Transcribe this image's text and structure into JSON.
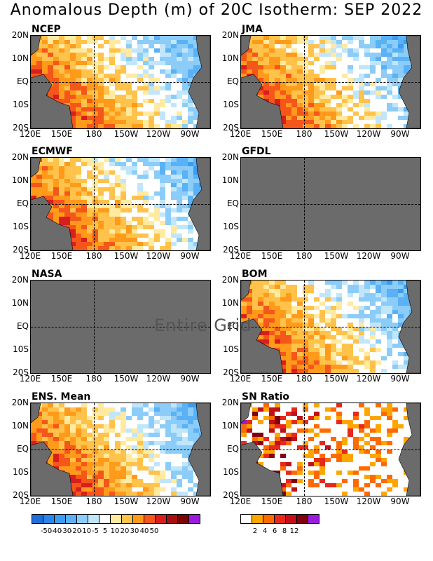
{
  "title": "Anomalous Depth (m) of 20C Isotherm: SEP 2022",
  "panels": [
    {
      "label": "NCEP",
      "available": true
    },
    {
      "label": "JMA",
      "available": true
    },
    {
      "label": "ECMWF",
      "available": true
    },
    {
      "label": "GFDL",
      "available": false
    },
    {
      "label": "NASA",
      "available": false
    },
    {
      "label": "BOM",
      "available": true
    },
    {
      "label": "ENS. Mean",
      "available": true
    },
    {
      "label": "SN Ratio",
      "available": true
    }
  ],
  "y_ticks": [
    "20N",
    "10N",
    "EQ",
    "10S",
    "20S"
  ],
  "x_ticks": [
    "120E",
    "150E",
    "180",
    "150W",
    "120W",
    "90W"
  ],
  "overlay_text": "Entire Grid",
  "anomaly_colorbar": {
    "colors": [
      "#1e6fd9",
      "#2a86e8",
      "#3c9cf0",
      "#5ab1f5",
      "#8bcdf8",
      "#c1e6fb",
      "#ffffff",
      "#ffeaa0",
      "#ffc24a",
      "#ff9a1a",
      "#f5561a",
      "#d91e1e",
      "#a80f0f",
      "#7a0505",
      "#9b1bdd"
    ],
    "labels": [
      "-50",
      "-40",
      "-30",
      "-20",
      "-10",
      "-5",
      "5",
      "10",
      "20",
      "30",
      "40",
      "50"
    ]
  },
  "sn_colorbar": {
    "colors": [
      "#ffffff",
      "#ffa500",
      "#ff6a00",
      "#e8281a",
      "#c0101a",
      "#800010",
      "#9b1bdd"
    ],
    "labels": [
      "2",
      "4",
      "6",
      "8",
      "12"
    ]
  }
}
